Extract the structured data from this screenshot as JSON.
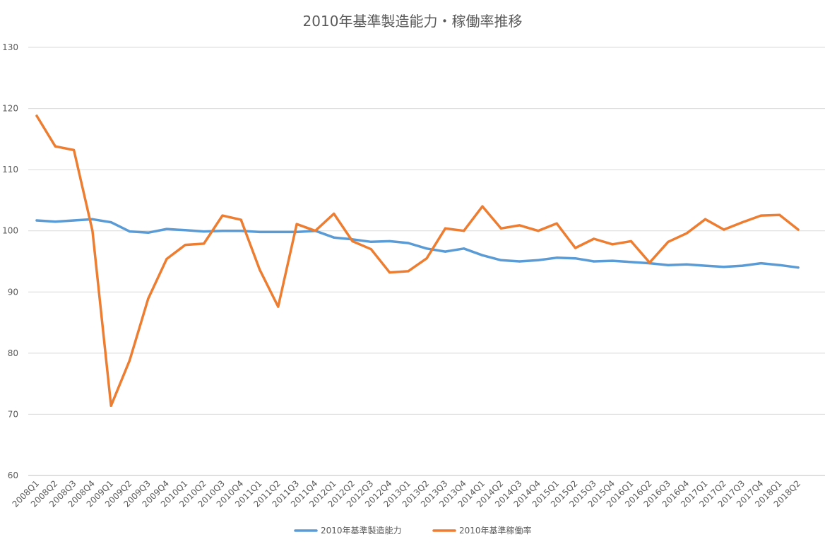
{
  "chart_data": {
    "type": "line",
    "title": "2010年基準製造能力・稼働率推移",
    "xlabel": "",
    "ylabel": "",
    "ylim": [
      60,
      130
    ],
    "yticks": [
      60,
      70,
      80,
      90,
      100,
      110,
      120,
      130
    ],
    "grid": true,
    "legend_position": "bottom",
    "categories": [
      "2008Q1",
      "2008Q2",
      "2008Q3",
      "2008Q4",
      "2009Q1",
      "2009Q2",
      "2009Q3",
      "2009Q4",
      "2010Q1",
      "2010Q2",
      "2010Q3",
      "2010Q4",
      "2011Q1",
      "2011Q2",
      "2011Q3",
      "2011Q4",
      "2012Q1",
      "2012Q2",
      "2012Q3",
      "2012Q4",
      "2013Q1",
      "2013Q2",
      "2013Q3",
      "2013Q4",
      "2014Q1",
      "2014Q2",
      "2014Q3",
      "2014Q4",
      "2015Q1",
      "2015Q2",
      "2015Q3",
      "2015Q4",
      "2016Q1",
      "2016Q2",
      "2016Q3",
      "2016Q4",
      "2017Q1",
      "2017Q2",
      "2017Q3",
      "2017Q4",
      "2018Q1",
      "2018Q2"
    ],
    "series": [
      {
        "name": "2010年基準製造能力",
        "color": "#5b9bd5",
        "values": [
          101.7,
          101.5,
          101.7,
          101.9,
          101.4,
          99.9,
          99.7,
          100.3,
          100.1,
          99.9,
          100.0,
          100.0,
          99.8,
          99.8,
          99.8,
          100.0,
          98.9,
          98.6,
          98.2,
          98.3,
          98.0,
          97.1,
          96.6,
          97.1,
          96.0,
          95.2,
          95.0,
          95.2,
          95.6,
          95.5,
          95.0,
          95.1,
          94.9,
          94.7,
          94.4,
          94.5,
          94.3,
          94.1,
          94.3,
          94.7,
          94.4,
          94.0
        ]
      },
      {
        "name": "2010年基準稼働率",
        "color": "#ed7d31",
        "values": [
          118.8,
          113.8,
          113.2,
          100.0,
          71.4,
          78.8,
          88.9,
          95.4,
          97.7,
          97.9,
          102.5,
          101.8,
          93.7,
          87.6,
          101.1,
          100.0,
          102.8,
          98.3,
          97.0,
          93.2,
          93.4,
          95.5,
          100.4,
          100.0,
          104.0,
          100.4,
          100.9,
          100.0,
          101.2,
          97.2,
          98.7,
          97.8,
          98.3,
          94.8,
          98.2,
          99.6,
          101.9,
          100.2,
          101.4,
          102.5,
          102.6,
          100.2
        ]
      }
    ]
  }
}
